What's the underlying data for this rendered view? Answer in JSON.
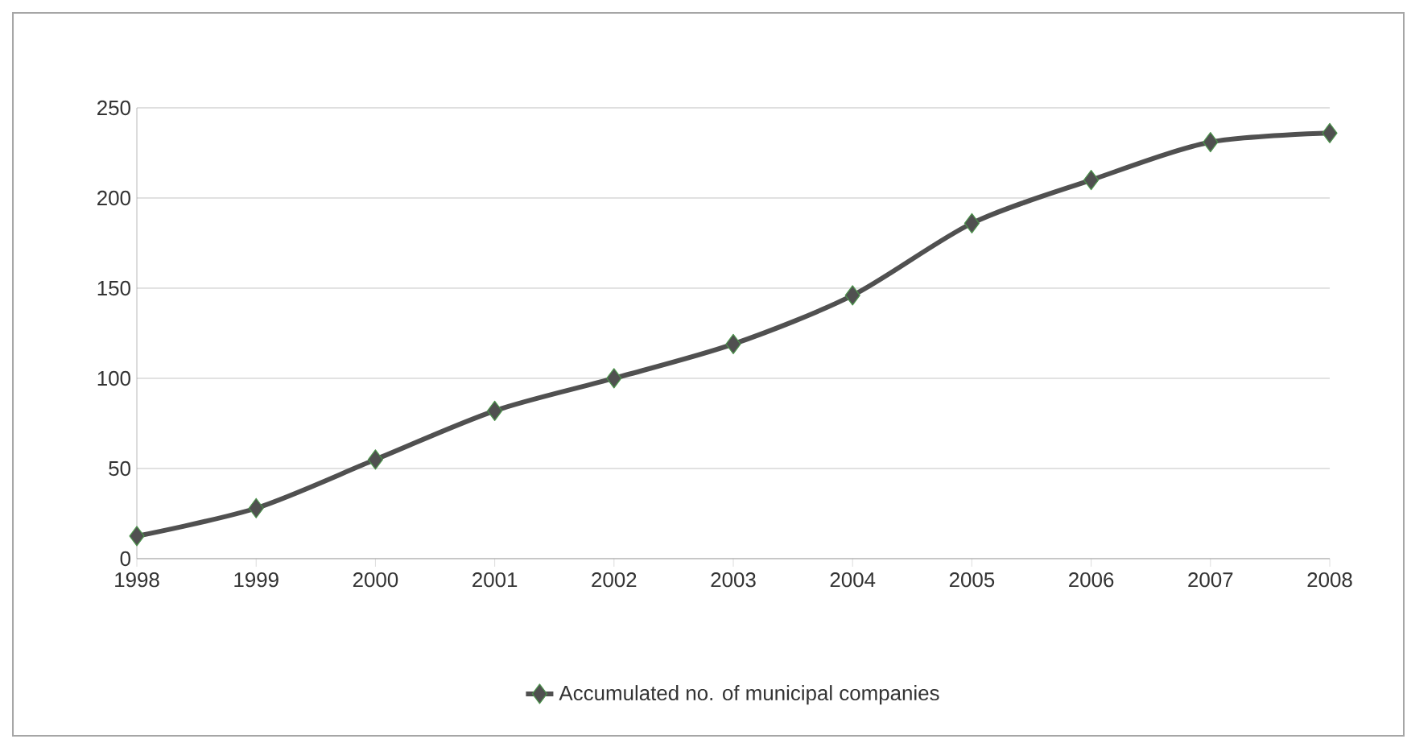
{
  "chart_data": {
    "type": "line",
    "categories": [
      "1998",
      "1999",
      "2000",
      "2001",
      "2002",
      "2003",
      "2004",
      "2005",
      "2006",
      "2007",
      "2008"
    ],
    "series": [
      {
        "name": "Accumulated no. of municipal companies",
        "color": "#505050",
        "values": [
          12.5,
          28,
          55,
          82,
          100,
          119,
          146,
          186,
          210,
          231,
          236
        ]
      }
    ],
    "ylim": [
      0,
      250
    ],
    "yticks": [
      0,
      50,
      100,
      150,
      200,
      250
    ],
    "grid": "y",
    "legend": "bottom",
    "marker": "diamond",
    "line_style": "solid"
  }
}
